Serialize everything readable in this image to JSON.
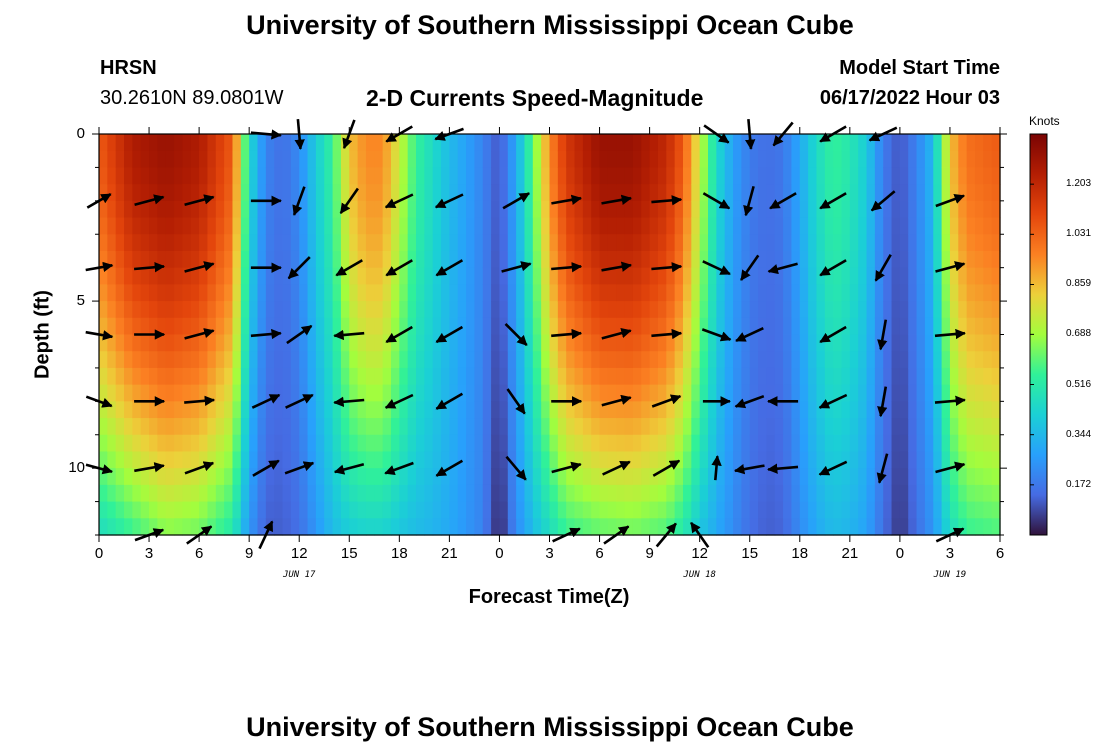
{
  "header": {
    "title": "University of Southern Mississippi Ocean Cube",
    "station": "HRSN",
    "coords": "30.2610N  89.0801W",
    "subtitle": "2-D Currents Speed-Magnitude",
    "model_label": "Model Start Time",
    "model_time": "06/17/2022 Hour 03"
  },
  "footer": {
    "title": "University of Southern Mississippi Ocean Cube"
  },
  "colors": {
    "accent_dark": "#7a0403",
    "accent_low": "#30123b"
  },
  "chart_data": {
    "type": "heatmap",
    "xlabel": "Forecast Time(Z)",
    "ylabel": "Depth (ft)",
    "x_range_hours": [
      0,
      54
    ],
    "y_range_ft": [
      0,
      12
    ],
    "x_tick_labels": [
      "0",
      "3",
      "6",
      "9",
      "12",
      "15",
      "18",
      "21",
      "0",
      "3",
      "6",
      "9",
      "12",
      "15",
      "18",
      "21",
      "0",
      "3",
      "6"
    ],
    "y_ticks": [
      0,
      5,
      10
    ],
    "date_labels": [
      {
        "text": "JUN 17",
        "hour": 12
      },
      {
        "text": "JUN 18",
        "hour": 36
      },
      {
        "text": "JUN 19",
        "hour": 51
      }
    ],
    "colorbar": {
      "unit": "Knots",
      "min": 0.0,
      "max": 1.375,
      "tick_labels": [
        "1.203",
        "1.031",
        "0.859",
        "0.688",
        "0.516",
        "0.344",
        "0.172"
      ],
      "tick_values": [
        1.203,
        1.031,
        0.859,
        0.688,
        0.516,
        0.344,
        0.172
      ]
    },
    "speed_profile_hours": [
      0,
      2,
      4,
      6,
      8,
      9,
      10,
      11,
      12,
      13,
      14,
      15,
      16,
      17,
      18,
      19,
      20,
      21,
      22,
      23,
      24,
      25,
      26,
      27,
      28,
      30,
      32,
      34,
      35,
      36,
      37,
      38,
      39,
      40,
      41,
      42,
      43,
      44,
      45,
      46,
      47,
      48,
      49,
      50,
      51,
      52,
      54
    ],
    "surface_speed_knots": [
      1.05,
      1.25,
      1.3,
      1.25,
      1.05,
      0.45,
      0.2,
      0.15,
      0.22,
      0.4,
      0.55,
      0.85,
      0.95,
      0.95,
      0.75,
      0.55,
      0.45,
      0.35,
      0.28,
      0.2,
      0.1,
      0.3,
      0.6,
      0.95,
      1.15,
      1.3,
      1.3,
      1.2,
      1.05,
      0.75,
      0.45,
      0.28,
      0.18,
      0.15,
      0.17,
      0.3,
      0.45,
      0.55,
      0.5,
      0.4,
      0.18,
      0.1,
      0.2,
      0.35,
      0.85,
      1.0,
      1.05
    ],
    "bottom_speed_knots": [
      0.45,
      0.55,
      0.65,
      0.62,
      0.5,
      0.25,
      0.12,
      0.12,
      0.15,
      0.25,
      0.35,
      0.4,
      0.42,
      0.42,
      0.38,
      0.35,
      0.33,
      0.3,
      0.25,
      0.2,
      0.02,
      0.22,
      0.35,
      0.45,
      0.55,
      0.6,
      0.62,
      0.58,
      0.5,
      0.38,
      0.3,
      0.22,
      0.15,
      0.12,
      0.13,
      0.22,
      0.3,
      0.35,
      0.33,
      0.28,
      0.15,
      0.05,
      0.15,
      0.25,
      0.45,
      0.55,
      0.58
    ],
    "vectors": [
      {
        "t": 0,
        "d": 2,
        "dir": 60,
        "mag": 0.9
      },
      {
        "t": 0,
        "d": 4,
        "dir": 80,
        "mag": 0.9
      },
      {
        "t": 0,
        "d": 6,
        "dir": 100,
        "mag": 0.9
      },
      {
        "t": 0,
        "d": 8,
        "dir": 110,
        "mag": 0.9
      },
      {
        "t": 0,
        "d": 10,
        "dir": 105,
        "mag": 0.9
      },
      {
        "t": 3,
        "d": 2,
        "dir": 75,
        "mag": 1.0
      },
      {
        "t": 3,
        "d": 4,
        "dir": 85,
        "mag": 1.0
      },
      {
        "t": 3,
        "d": 6,
        "dir": 90,
        "mag": 1.0
      },
      {
        "t": 3,
        "d": 8,
        "dir": 90,
        "mag": 1.0
      },
      {
        "t": 3,
        "d": 10,
        "dir": 80,
        "mag": 1.0
      },
      {
        "t": 3,
        "d": 12,
        "dir": 70,
        "mag": 1.0
      },
      {
        "t": 6,
        "d": 2,
        "dir": 75,
        "mag": 1.0
      },
      {
        "t": 6,
        "d": 4,
        "dir": 75,
        "mag": 1.0
      },
      {
        "t": 6,
        "d": 6,
        "dir": 75,
        "mag": 1.0
      },
      {
        "t": 6,
        "d": 8,
        "dir": 85,
        "mag": 1.0
      },
      {
        "t": 6,
        "d": 10,
        "dir": 70,
        "mag": 1.0
      },
      {
        "t": 6,
        "d": 12,
        "dir": 55,
        "mag": 1.0
      },
      {
        "t": 10,
        "d": 0,
        "dir": 95,
        "mag": 1.0
      },
      {
        "t": 10,
        "d": 2,
        "dir": 90,
        "mag": 1.0
      },
      {
        "t": 10,
        "d": 4,
        "dir": 90,
        "mag": 1.0
      },
      {
        "t": 10,
        "d": 6,
        "dir": 85,
        "mag": 1.0
      },
      {
        "t": 10,
        "d": 8,
        "dir": 65,
        "mag": 1.0
      },
      {
        "t": 10,
        "d": 10,
        "dir": 60,
        "mag": 1.0
      },
      {
        "t": 10,
        "d": 12,
        "dir": 25,
        "mag": 1.0
      },
      {
        "t": 12,
        "d": 0,
        "dir": 175,
        "mag": 1.0
      },
      {
        "t": 12,
        "d": 2,
        "dir": 200,
        "mag": 1.0
      },
      {
        "t": 12,
        "d": 4,
        "dir": 225,
        "mag": 1.0
      },
      {
        "t": 12,
        "d": 6,
        "dir": 55,
        "mag": 1.0
      },
      {
        "t": 12,
        "d": 8,
        "dir": 65,
        "mag": 1.0
      },
      {
        "t": 12,
        "d": 10,
        "dir": 70,
        "mag": 1.0
      },
      {
        "t": 15,
        "d": 0,
        "dir": 200,
        "mag": 1.0
      },
      {
        "t": 15,
        "d": 2,
        "dir": 215,
        "mag": 1.0
      },
      {
        "t": 15,
        "d": 4,
        "dir": 240,
        "mag": 1.0
      },
      {
        "t": 15,
        "d": 6,
        "dir": 265,
        "mag": 1.0
      },
      {
        "t": 15,
        "d": 8,
        "dir": 265,
        "mag": 1.0
      },
      {
        "t": 15,
        "d": 10,
        "dir": 255,
        "mag": 1.0
      },
      {
        "t": 18,
        "d": 0,
        "dir": 240,
        "mag": 1.0
      },
      {
        "t": 18,
        "d": 2,
        "dir": 245,
        "mag": 1.0
      },
      {
        "t": 18,
        "d": 4,
        "dir": 240,
        "mag": 1.0
      },
      {
        "t": 18,
        "d": 6,
        "dir": 240,
        "mag": 1.0
      },
      {
        "t": 18,
        "d": 8,
        "dir": 245,
        "mag": 1.0
      },
      {
        "t": 18,
        "d": 10,
        "dir": 250,
        "mag": 1.0
      },
      {
        "t": 21,
        "d": 0,
        "dir": 250,
        "mag": 1.0
      },
      {
        "t": 21,
        "d": 2,
        "dir": 245,
        "mag": 1.0
      },
      {
        "t": 21,
        "d": 4,
        "dir": 240,
        "mag": 1.0
      },
      {
        "t": 21,
        "d": 6,
        "dir": 240,
        "mag": 1.0
      },
      {
        "t": 21,
        "d": 8,
        "dir": 240,
        "mag": 1.0
      },
      {
        "t": 21,
        "d": 10,
        "dir": 240,
        "mag": 1.0
      },
      {
        "t": 25,
        "d": 2,
        "dir": 60,
        "mag": 1.0
      },
      {
        "t": 25,
        "d": 4,
        "dir": 75,
        "mag": 1.0
      },
      {
        "t": 25,
        "d": 6,
        "dir": 135,
        "mag": 1.0
      },
      {
        "t": 25,
        "d": 8,
        "dir": 145,
        "mag": 1.0
      },
      {
        "t": 25,
        "d": 10,
        "dir": 140,
        "mag": 1.0
      },
      {
        "t": 28,
        "d": 2,
        "dir": 80,
        "mag": 1.0
      },
      {
        "t": 28,
        "d": 4,
        "dir": 85,
        "mag": 1.0
      },
      {
        "t": 28,
        "d": 6,
        "dir": 85,
        "mag": 1.0
      },
      {
        "t": 28,
        "d": 8,
        "dir": 90,
        "mag": 1.0
      },
      {
        "t": 28,
        "d": 10,
        "dir": 75,
        "mag": 1.0
      },
      {
        "t": 28,
        "d": 12,
        "dir": 65,
        "mag": 1.0
      },
      {
        "t": 31,
        "d": 2,
        "dir": 80,
        "mag": 1.0
      },
      {
        "t": 31,
        "d": 4,
        "dir": 80,
        "mag": 1.0
      },
      {
        "t": 31,
        "d": 6,
        "dir": 75,
        "mag": 1.0
      },
      {
        "t": 31,
        "d": 8,
        "dir": 75,
        "mag": 1.0
      },
      {
        "t": 31,
        "d": 10,
        "dir": 65,
        "mag": 1.0
      },
      {
        "t": 31,
        "d": 12,
        "dir": 55,
        "mag": 1.0
      },
      {
        "t": 34,
        "d": 2,
        "dir": 85,
        "mag": 1.0
      },
      {
        "t": 34,
        "d": 4,
        "dir": 85,
        "mag": 1.0
      },
      {
        "t": 34,
        "d": 6,
        "dir": 85,
        "mag": 1.0
      },
      {
        "t": 34,
        "d": 8,
        "dir": 70,
        "mag": 1.0
      },
      {
        "t": 34,
        "d": 10,
        "dir": 60,
        "mag": 1.0
      },
      {
        "t": 34,
        "d": 12,
        "dir": 40,
        "mag": 1.0
      },
      {
        "t": 36,
        "d": 12,
        "dir": 325,
        "mag": 1.0
      },
      {
        "t": 37,
        "d": 0,
        "dir": 125,
        "mag": 1.0
      },
      {
        "t": 37,
        "d": 2,
        "dir": 120,
        "mag": 1.0
      },
      {
        "t": 37,
        "d": 4,
        "dir": 115,
        "mag": 1.0
      },
      {
        "t": 37,
        "d": 6,
        "dir": 110,
        "mag": 1.0
      },
      {
        "t": 37,
        "d": 8,
        "dir": 90,
        "mag": 0.9
      },
      {
        "t": 37,
        "d": 10,
        "dir": 5,
        "mag": 0.8
      },
      {
        "t": 39,
        "d": 0,
        "dir": 175,
        "mag": 1.0
      },
      {
        "t": 39,
        "d": 2,
        "dir": 195,
        "mag": 1.0
      },
      {
        "t": 39,
        "d": 4,
        "dir": 215,
        "mag": 1.0
      },
      {
        "t": 39,
        "d": 6,
        "dir": 245,
        "mag": 1.0
      },
      {
        "t": 39,
        "d": 8,
        "dir": 250,
        "mag": 1.0
      },
      {
        "t": 39,
        "d": 10,
        "dir": 260,
        "mag": 1.0
      },
      {
        "t": 41,
        "d": 0,
        "dir": 220,
        "mag": 1.0
      },
      {
        "t": 41,
        "d": 2,
        "dir": 240,
        "mag": 1.0
      },
      {
        "t": 41,
        "d": 4,
        "dir": 255,
        "mag": 1.0
      },
      {
        "t": 41,
        "d": 8,
        "dir": 270,
        "mag": 1.0
      },
      {
        "t": 41,
        "d": 10,
        "dir": 265,
        "mag": 1.0
      },
      {
        "t": 44,
        "d": 0,
        "dir": 240,
        "mag": 1.0
      },
      {
        "t": 44,
        "d": 2,
        "dir": 240,
        "mag": 1.0
      },
      {
        "t": 44,
        "d": 4,
        "dir": 240,
        "mag": 1.0
      },
      {
        "t": 44,
        "d": 6,
        "dir": 240,
        "mag": 1.0
      },
      {
        "t": 44,
        "d": 8,
        "dir": 245,
        "mag": 1.0
      },
      {
        "t": 44,
        "d": 10,
        "dir": 245,
        "mag": 1.0
      },
      {
        "t": 47,
        "d": 0,
        "dir": 245,
        "mag": 1.0
      },
      {
        "t": 47,
        "d": 2,
        "dir": 230,
        "mag": 1.0
      },
      {
        "t": 47,
        "d": 4,
        "dir": 210,
        "mag": 1.0
      },
      {
        "t": 47,
        "d": 6,
        "dir": 190,
        "mag": 1.0
      },
      {
        "t": 47,
        "d": 8,
        "dir": 190,
        "mag": 1.0
      },
      {
        "t": 47,
        "d": 10,
        "dir": 195,
        "mag": 1.0
      },
      {
        "t": 51,
        "d": 2,
        "dir": 70,
        "mag": 1.0
      },
      {
        "t": 51,
        "d": 4,
        "dir": 75,
        "mag": 1.0
      },
      {
        "t": 51,
        "d": 6,
        "dir": 85,
        "mag": 1.0
      },
      {
        "t": 51,
        "d": 8,
        "dir": 85,
        "mag": 1.0
      },
      {
        "t": 51,
        "d": 10,
        "dir": 75,
        "mag": 1.0
      },
      {
        "t": 51,
        "d": 12,
        "dir": 65,
        "mag": 1.0
      }
    ]
  }
}
